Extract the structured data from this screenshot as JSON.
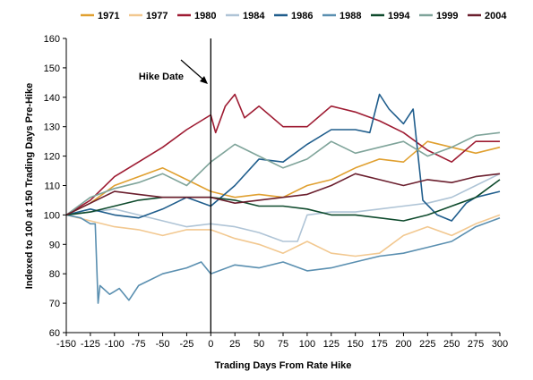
{
  "chart_data": {
    "type": "line",
    "title": "",
    "xlabel": "Trading Days From Rate Hike",
    "ylabel": "Indexed to 100 at 150 Trading Days Pre-Hike",
    "xlim": [
      -150,
      300
    ],
    "ylim": [
      60,
      160
    ],
    "x_ticks": [
      -150,
      -125,
      -100,
      -75,
      -50,
      -25,
      0,
      25,
      50,
      75,
      100,
      125,
      150,
      175,
      200,
      225,
      250,
      275,
      300
    ],
    "y_ticks": [
      60,
      70,
      80,
      90,
      100,
      110,
      120,
      130,
      140,
      150,
      160
    ],
    "grid": false,
    "legend_position": "top",
    "annotation": {
      "text": "Hike Date",
      "x": 0
    },
    "series": [
      {
        "name": "1971",
        "color": "#E0A030",
        "x": [
          -150,
          -125,
          -100,
          -75,
          -50,
          -25,
          0,
          25,
          50,
          75,
          100,
          125,
          150,
          175,
          200,
          225,
          250,
          275,
          300
        ],
        "values": [
          100,
          104,
          110,
          113,
          116,
          112,
          108,
          106,
          107,
          106,
          110,
          112,
          116,
          119,
          118,
          125,
          123,
          121,
          123
        ]
      },
      {
        "name": "1977",
        "color": "#F2C890",
        "x": [
          -150,
          -125,
          -100,
          -75,
          -50,
          -25,
          0,
          25,
          50,
          75,
          100,
          125,
          150,
          175,
          200,
          225,
          250,
          275,
          300
        ],
        "values": [
          100,
          98,
          96,
          95,
          93,
          95,
          95,
          92,
          90,
          87,
          91,
          87,
          86,
          87,
          93,
          96,
          93,
          97,
          100
        ]
      },
      {
        "name": "1980",
        "color": "#9E1B32",
        "x": [
          -150,
          -125,
          -100,
          -75,
          -50,
          -25,
          0,
          5,
          15,
          25,
          35,
          50,
          75,
          100,
          125,
          150,
          175,
          200,
          225,
          250,
          275,
          300
        ],
        "values": [
          100,
          105,
          113,
          118,
          123,
          129,
          134,
          128,
          137,
          141,
          133,
          137,
          130,
          130,
          137,
          135,
          132,
          128,
          122,
          118,
          125,
          125
        ]
      },
      {
        "name": "1984",
        "color": "#AFC4D6",
        "x": [
          -150,
          -125,
          -100,
          -75,
          -50,
          -25,
          0,
          25,
          50,
          75,
          90,
          100,
          125,
          150,
          175,
          200,
          225,
          250,
          275,
          300
        ],
        "values": [
          100,
          101,
          102,
          100,
          98,
          96,
          97,
          96,
          94,
          91,
          91,
          100,
          101,
          101,
          102,
          103,
          104,
          106,
          110,
          114
        ]
      },
      {
        "name": "1986",
        "color": "#1F5D8C",
        "x": [
          -150,
          -125,
          -100,
          -75,
          -50,
          -25,
          0,
          25,
          50,
          75,
          100,
          125,
          150,
          165,
          175,
          185,
          200,
          210,
          220,
          235,
          250,
          265,
          275,
          300
        ],
        "values": [
          100,
          102,
          100,
          99,
          102,
          106,
          103,
          110,
          119,
          118,
          124,
          129,
          129,
          128,
          141,
          136,
          131,
          136,
          105,
          100,
          98,
          104,
          106,
          108
        ]
      },
      {
        "name": "1988",
        "color": "#5A8FB0",
        "x": [
          -150,
          -135,
          -125,
          -120,
          -117,
          -115,
          -105,
          -95,
          -85,
          -75,
          -50,
          -25,
          -10,
          0,
          25,
          50,
          75,
          100,
          125,
          150,
          175,
          200,
          225,
          250,
          275,
          300
        ],
        "values": [
          100,
          99,
          97,
          97,
          70,
          76,
          73,
          75,
          71,
          76,
          80,
          82,
          84,
          80,
          83,
          82,
          84,
          81,
          82,
          84,
          86,
          87,
          89,
          91,
          96,
          99
        ]
      },
      {
        "name": "1994",
        "color": "#0E4A2C",
        "x": [
          -150,
          -125,
          -100,
          -75,
          -50,
          -25,
          0,
          25,
          50,
          75,
          100,
          125,
          150,
          175,
          200,
          225,
          250,
          275,
          300
        ],
        "values": [
          100,
          101,
          103,
          105,
          106,
          106,
          106,
          105,
          103,
          103,
          102,
          100,
          100,
          99,
          98,
          100,
          103,
          106,
          112
        ]
      },
      {
        "name": "1999",
        "color": "#7FA49A",
        "x": [
          -150,
          -125,
          -100,
          -75,
          -50,
          -25,
          0,
          25,
          50,
          75,
          100,
          125,
          150,
          175,
          200,
          225,
          250,
          275,
          300
        ],
        "values": [
          100,
          106,
          109,
          111,
          114,
          110,
          118,
          124,
          120,
          116,
          119,
          125,
          121,
          123,
          125,
          120,
          123,
          127,
          128
        ]
      },
      {
        "name": "2004",
        "color": "#6B1F2E",
        "x": [
          -150,
          -125,
          -100,
          -75,
          -50,
          -25,
          0,
          25,
          50,
          75,
          100,
          125,
          150,
          175,
          200,
          225,
          250,
          275,
          300
        ],
        "values": [
          100,
          104,
          108,
          107,
          106,
          106,
          106,
          104,
          105,
          106,
          107,
          110,
          114,
          112,
          110,
          112,
          111,
          113,
          114
        ]
      }
    ]
  }
}
